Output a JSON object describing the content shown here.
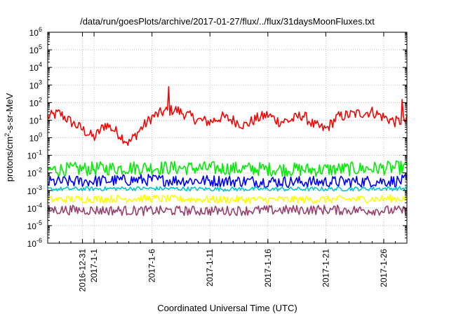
{
  "chart_data": {
    "type": "line",
    "title": "/data/run/goesPlots/archive/2017-01-27/flux/../flux/31daysMoonFluxes.txt",
    "xlabel": "Coordinated Universal Time (UTC)",
    "ylabel": {
      "base": "protons/cm",
      "sup": "2",
      "rest": "-s-sr-MeV"
    },
    "y_scale": "log",
    "ylim": [
      1e-06,
      1000000.0
    ],
    "y_ticks": [
      {
        "exp": "-6",
        "value": 1e-06
      },
      {
        "exp": "-5",
        "value": 1e-05
      },
      {
        "exp": "-4",
        "value": 0.0001
      },
      {
        "exp": "-3",
        "value": 0.001
      },
      {
        "exp": "-2",
        "value": 0.01
      },
      {
        "exp": "-1",
        "value": 0.1
      },
      {
        "exp": "0",
        "value": 1
      },
      {
        "exp": "1",
        "value": 10
      },
      {
        "exp": "2",
        "value": 100
      },
      {
        "exp": "3",
        "value": 1000
      },
      {
        "exp": "4",
        "value": 10000
      },
      {
        "exp": "5",
        "value": 100000
      },
      {
        "exp": "6",
        "value": 1000000
      }
    ],
    "xlim": [
      "2016-12-28",
      "2017-01-28"
    ],
    "x_ticks": [
      {
        "label": "2016-12-31",
        "date": "2016-12-31"
      },
      {
        "label": "2017-1-1",
        "date": "2017-01-01"
      },
      {
        "label": "2017-1-6",
        "date": "2017-01-06"
      },
      {
        "label": "2017-1-11",
        "date": "2017-01-11"
      },
      {
        "label": "2017-1-16",
        "date": "2017-01-16"
      },
      {
        "label": "2017-1-21",
        "date": "2017-01-21"
      },
      {
        "label": "2017-1-26",
        "date": "2017-01-26"
      }
    ],
    "grid": true,
    "series": [
      {
        "color": "#ff0000",
        "spikes": [
          {
            "date": "2017-01-07.4",
            "value": 800
          },
          {
            "date": "2017-01-27.6",
            "value": 150
          }
        ],
        "values": [
          {
            "date": "2016-12-28",
            "value": 15
          },
          {
            "date": "2016-12-29",
            "value": 25
          },
          {
            "date": "2016-12-30",
            "value": 8
          },
          {
            "date": "2016-12-31",
            "value": 3
          },
          {
            "date": "2017-01-01",
            "value": 1
          },
          {
            "date": "2017-01-02",
            "value": 6
          },
          {
            "date": "2017-01-03",
            "value": 2
          },
          {
            "date": "2017-01-04",
            "value": 0.5
          },
          {
            "date": "2017-01-05",
            "value": 3
          },
          {
            "date": "2017-01-06",
            "value": 15
          },
          {
            "date": "2017-01-07",
            "value": 30
          },
          {
            "date": "2017-01-08",
            "value": 40
          },
          {
            "date": "2017-01-09",
            "value": 20
          },
          {
            "date": "2017-01-10",
            "value": 10
          },
          {
            "date": "2017-01-11",
            "value": 8
          },
          {
            "date": "2017-01-12",
            "value": 15
          },
          {
            "date": "2017-01-13",
            "value": 10
          },
          {
            "date": "2017-01-14",
            "value": 5
          },
          {
            "date": "2017-01-15",
            "value": 12
          },
          {
            "date": "2017-01-16",
            "value": 20
          },
          {
            "date": "2017-01-17",
            "value": 8
          },
          {
            "date": "2017-01-18",
            "value": 10
          },
          {
            "date": "2017-01-19",
            "value": 20
          },
          {
            "date": "2017-01-20",
            "value": 5
          },
          {
            "date": "2017-01-21",
            "value": 3
          },
          {
            "date": "2017-01-22",
            "value": 15
          },
          {
            "date": "2017-01-23",
            "value": 20
          },
          {
            "date": "2017-01-24",
            "value": 25
          },
          {
            "date": "2017-01-25",
            "value": 30
          },
          {
            "date": "2017-01-26",
            "value": 15
          },
          {
            "date": "2017-01-27",
            "value": 8
          },
          {
            "date": "2017-01-28",
            "value": 10
          }
        ]
      },
      {
        "color": "#00ee00",
        "values": [
          {
            "date": "2016-12-28",
            "value": 0.015
          },
          {
            "date": "2017-01-05",
            "value": 0.02
          },
          {
            "date": "2017-01-12",
            "value": 0.018
          },
          {
            "date": "2017-01-20",
            "value": 0.015
          },
          {
            "date": "2017-01-28",
            "value": 0.02
          }
        ]
      },
      {
        "color": "#0000ff",
        "values": [
          {
            "date": "2016-12-28",
            "value": 0.003
          },
          {
            "date": "2017-01-05",
            "value": 0.004
          },
          {
            "date": "2017-01-12",
            "value": 0.0035
          },
          {
            "date": "2017-01-20",
            "value": 0.003
          },
          {
            "date": "2017-01-28",
            "value": 0.0035
          }
        ]
      },
      {
        "color": "#00c8c8",
        "values": [
          {
            "date": "2016-12-28",
            "value": 0.0012
          },
          {
            "date": "2017-01-05",
            "value": 0.0013
          },
          {
            "date": "2017-01-12",
            "value": 0.0012
          },
          {
            "date": "2017-01-20",
            "value": 0.0012
          },
          {
            "date": "2017-01-28",
            "value": 0.0013
          }
        ]
      },
      {
        "color": "#ffff00",
        "values": [
          {
            "date": "2016-12-28",
            "value": 0.0003
          },
          {
            "date": "2017-01-05",
            "value": 0.00035
          },
          {
            "date": "2017-01-12",
            "value": 0.0003
          },
          {
            "date": "2017-01-20",
            "value": 0.0003
          },
          {
            "date": "2017-01-28",
            "value": 0.00035
          }
        ]
      },
      {
        "color": "#99406e",
        "values": [
          {
            "date": "2016-12-28",
            "value": 8e-05
          },
          {
            "date": "2017-01-05",
            "value": 7e-05
          },
          {
            "date": "2017-01-12",
            "value": 7e-05
          },
          {
            "date": "2017-01-20",
            "value": 8e-05
          },
          {
            "date": "2017-01-28",
            "value": 7e-05
          }
        ]
      }
    ]
  }
}
